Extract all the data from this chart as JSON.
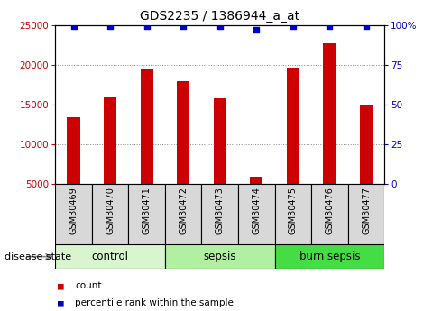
{
  "title": "GDS2235 / 1386944_a_at",
  "samples": [
    "GSM30469",
    "GSM30470",
    "GSM30471",
    "GSM30472",
    "GSM30473",
    "GSM30474",
    "GSM30475",
    "GSM30476",
    "GSM30477"
  ],
  "counts": [
    13400,
    15900,
    19500,
    17900,
    15700,
    5900,
    19600,
    22700,
    15000
  ],
  "percentiles": [
    99,
    99,
    99,
    99,
    99,
    97,
    99,
    99,
    99
  ],
  "group_boundaries": [
    {
      "label": "control",
      "start": 0,
      "end": 3,
      "color": "#d8f5d0"
    },
    {
      "label": "sepsis",
      "start": 3,
      "end": 6,
      "color": "#b0f0a0"
    },
    {
      "label": "burn sepsis",
      "start": 6,
      "end": 9,
      "color": "#44dd44"
    }
  ],
  "bar_color": "#cc0000",
  "dot_color": "#0000cc",
  "sample_box_color": "#d8d8d8",
  "y_left_ticks": [
    5000,
    10000,
    15000,
    20000,
    25000
  ],
  "y_right_ticks": [
    0,
    25,
    50,
    75,
    100
  ],
  "ylim_left": [
    5000,
    25000
  ],
  "ylim_right": [
    0,
    100
  ],
  "bar_bottom": 5000,
  "disease_state_label": "disease state",
  "legend_count_label": "count",
  "legend_percentile_label": "percentile rank within the sample",
  "title_fontsize": 10,
  "sample_label_fontsize": 7,
  "axis_tick_fontsize": 7.5,
  "group_label_fontsize": 8.5,
  "disease_label_fontsize": 8,
  "legend_fontsize": 7.5
}
